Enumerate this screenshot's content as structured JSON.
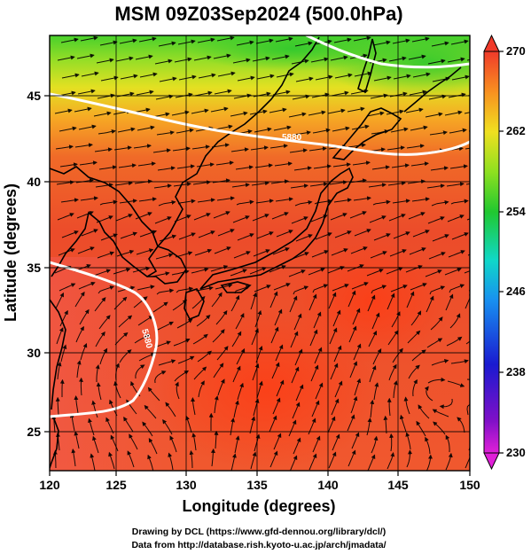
{
  "title": "MSM 09Z03Sep2024 (500.0hPa)",
  "x_axis": {
    "label": "Longitude (degrees)",
    "ticks": [
      "120",
      "125",
      "130",
      "135",
      "140",
      "145",
      "150"
    ]
  },
  "y_axis": {
    "label": "Latitude  (degrees)",
    "ticks": [
      "25",
      "30",
      "35",
      "40",
      "45"
    ]
  },
  "colorbar": {
    "ticks": [
      "230",
      "238",
      "246",
      "254",
      "262",
      "270"
    ]
  },
  "credits": {
    "drawing": "Drawing by DCL (https://www.gfd-dennou.org/library/dcl/)",
    "data": "Data from http://database.rish.kyoto-u.ac.jp/arch/jmadata/"
  },
  "map": {
    "lon_range": [
      120,
      150
    ],
    "lat_range": [
      22.5,
      47.8
    ],
    "contour_labels": [
      "5880",
      "5880"
    ],
    "colors": {
      "warm": "#ee4a2a",
      "hot": "#ff6a3a",
      "yellow": "#e8e022",
      "green": "#3ccc2a",
      "contour": "#ffffff",
      "streamline": "#000000"
    }
  }
}
